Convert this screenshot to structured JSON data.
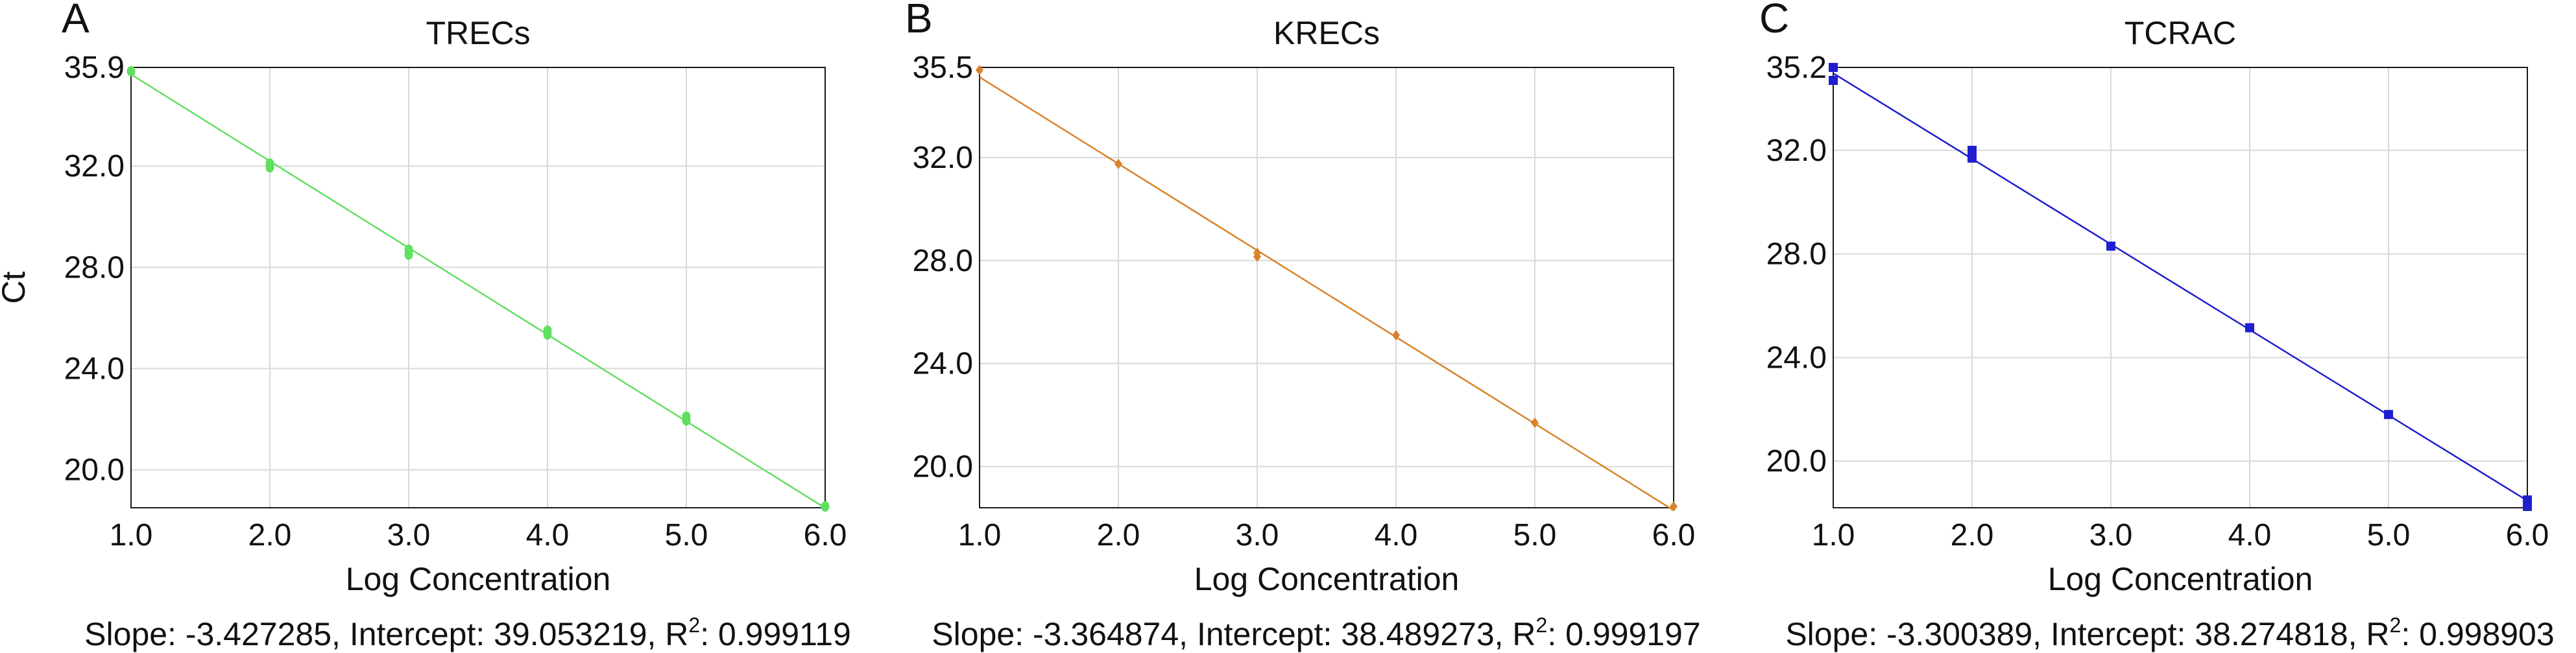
{
  "chart_data": [
    {
      "type": "scatter",
      "panel_label": "A",
      "title": "TRECs",
      "xlabel": "Log Concentration",
      "ylabel": "Ct",
      "xlim": [
        1.0,
        6.0
      ],
      "ylim": [
        18.5,
        35.9
      ],
      "x_ticks": [
        "1.0",
        "2.0",
        "3.0",
        "4.0",
        "5.0",
        "6.0"
      ],
      "y_ticks": [
        "35.9",
        "32.0",
        "28.0",
        "24.0",
        "20.0"
      ],
      "y_tick_values": [
        35.9,
        32.0,
        28.0,
        24.0,
        20.0
      ],
      "color": "#5fe05f",
      "marker": "circle",
      "points": [
        {
          "x": 1.0,
          "y": 35.75
        },
        {
          "x": 2.0,
          "y": 32.1
        },
        {
          "x": 2.0,
          "y": 31.95
        },
        {
          "x": 3.0,
          "y": 28.7
        },
        {
          "x": 3.0,
          "y": 28.5
        },
        {
          "x": 4.0,
          "y": 25.5
        },
        {
          "x": 4.0,
          "y": 25.35
        },
        {
          "x": 5.0,
          "y": 22.1
        },
        {
          "x": 5.0,
          "y": 21.95
        },
        {
          "x": 6.0,
          "y": 18.55
        }
      ],
      "fit": {
        "slope": -3.427285,
        "intercept": 39.053219
      },
      "stats": {
        "slope_text": "Slope: -3.427285, Intercept: 39.053219, R",
        "sup": "2",
        "r2_text": ": 0.999119"
      }
    },
    {
      "type": "scatter",
      "panel_label": "B",
      "title": "KRECs",
      "xlabel": "Log Concentration",
      "ylabel": "",
      "xlim": [
        1.0,
        6.0
      ],
      "ylim": [
        18.4,
        35.5
      ],
      "x_ticks": [
        "1.0",
        "2.0",
        "3.0",
        "4.0",
        "5.0",
        "6.0"
      ],
      "y_ticks": [
        "35.5",
        "32.0",
        "28.0",
        "24.0",
        "20.0"
      ],
      "y_tick_values": [
        35.5,
        32.0,
        28.0,
        24.0,
        20.0
      ],
      "color": "#d9822b",
      "marker": "diamond",
      "points": [
        {
          "x": 1.0,
          "y": 35.4
        },
        {
          "x": 2.0,
          "y": 31.75
        },
        {
          "x": 3.0,
          "y": 28.3
        },
        {
          "x": 3.0,
          "y": 28.15
        },
        {
          "x": 4.0,
          "y": 25.1
        },
        {
          "x": 5.0,
          "y": 21.7
        },
        {
          "x": 6.0,
          "y": 18.45
        }
      ],
      "fit": {
        "slope": -3.364874,
        "intercept": 38.489273
      },
      "stats": {
        "slope_text": "Slope: -3.364874, Intercept: 38.489273, R",
        "sup": "2",
        "r2_text": ": 0.999197"
      }
    },
    {
      "type": "scatter",
      "panel_label": "C",
      "title": "TCRAC",
      "xlabel": "Log Concentration",
      "ylabel": "",
      "xlim": [
        1.0,
        6.0
      ],
      "ylim": [
        18.2,
        35.2
      ],
      "x_ticks": [
        "1.0",
        "2.0",
        "3.0",
        "4.0",
        "5.0",
        "6.0"
      ],
      "y_ticks": [
        "35.2",
        "32.0",
        "28.0",
        "24.0",
        "20.0"
      ],
      "y_tick_values": [
        35.2,
        32.0,
        28.0,
        24.0,
        20.0
      ],
      "color": "#1f1fd0",
      "marker": "square",
      "points": [
        {
          "x": 1.0,
          "y": 35.2
        },
        {
          "x": 1.0,
          "y": 34.7
        },
        {
          "x": 2.0,
          "y": 32.0
        },
        {
          "x": 2.0,
          "y": 31.7
        },
        {
          "x": 3.0,
          "y": 28.3
        },
        {
          "x": 4.0,
          "y": 25.15
        },
        {
          "x": 5.0,
          "y": 21.8
        },
        {
          "x": 6.0,
          "y": 18.5
        },
        {
          "x": 6.0,
          "y": 18.25
        }
      ],
      "fit": {
        "slope": -3.300389,
        "intercept": 38.274818
      },
      "stats": {
        "slope_text": "Slope: -3.300389, Intercept: 38.274818, R",
        "sup": "2",
        "r2_text": ": 0.998903"
      }
    }
  ]
}
